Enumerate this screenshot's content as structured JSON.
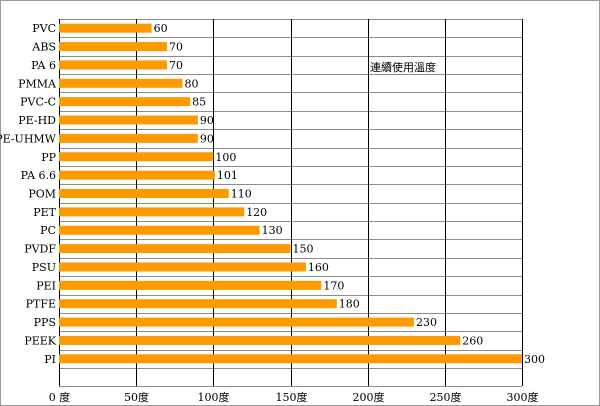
{
  "chart_data": {
    "type": "bar",
    "orientation": "horizontal",
    "categories": [
      "PVC",
      "ABS",
      "PA 6",
      "PMMA",
      "PVC-C",
      "PE-HD",
      "PE-UHMW",
      "PP",
      "PA 6.6",
      "POM",
      "PET",
      "PC",
      "PVDF",
      "PSU",
      "PEI",
      "PTFE",
      "PPS",
      "PEEK",
      "PI"
    ],
    "values": [
      60,
      70,
      70,
      80,
      85,
      90,
      90,
      100,
      101,
      110,
      120,
      130,
      150,
      160,
      170,
      180,
      230,
      260,
      300
    ],
    "value_labels": [
      "60",
      "70",
      "70",
      "80",
      "85",
      "90",
      "90",
      "100",
      "101",
      "110",
      "120",
      "130",
      "150",
      "160",
      "170",
      "180",
      "230",
      "260",
      "300"
    ],
    "xlim": [
      0,
      300
    ],
    "x_ticks": [
      0,
      50,
      100,
      150,
      200,
      250,
      300
    ],
    "x_tick_labels": [
      "0 度",
      "50度",
      "100度",
      "150度",
      "200度",
      "250度",
      "300度"
    ],
    "annotation": "連續使用溫度",
    "title": "",
    "xlabel": "",
    "ylabel": "",
    "grid": true,
    "colors": {
      "bar": "#FF9900",
      "grid": "#000000",
      "border": "#9a9a9a"
    }
  }
}
